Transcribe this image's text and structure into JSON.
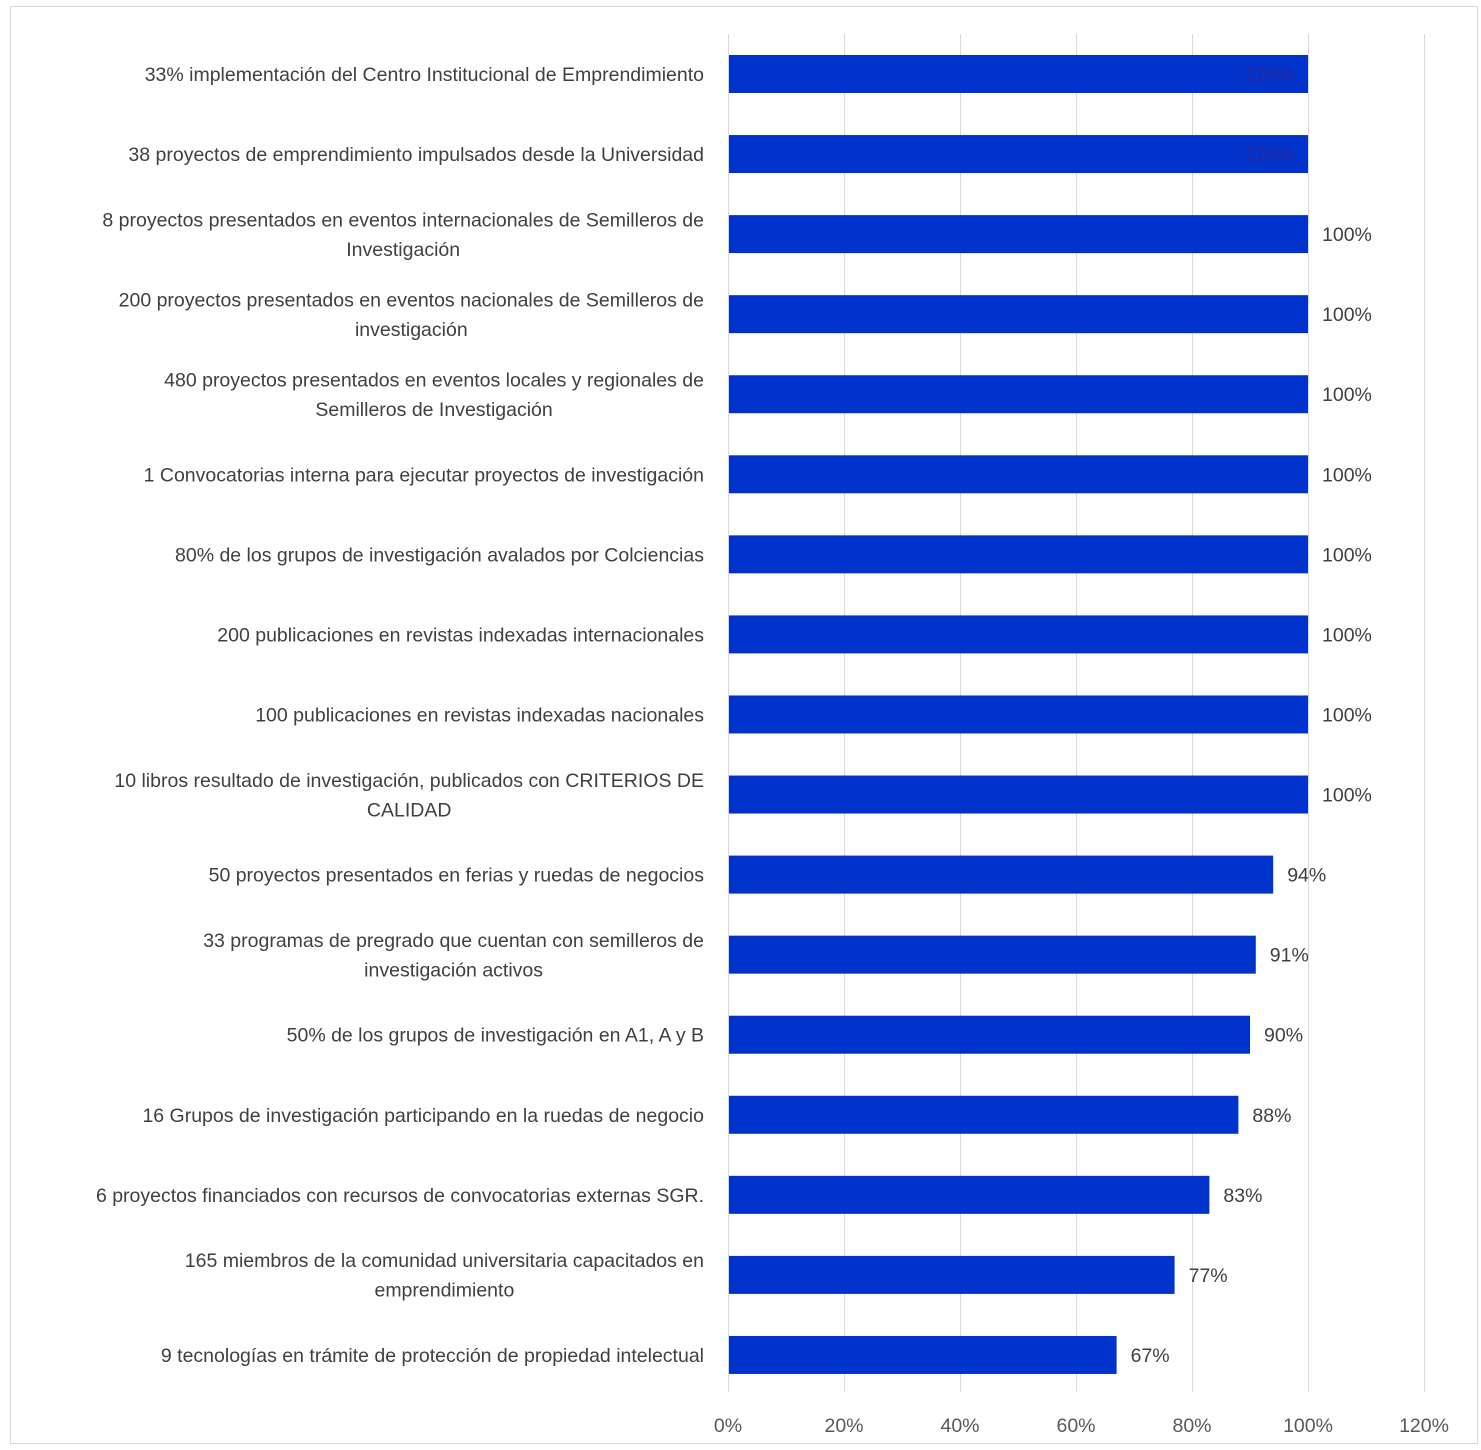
{
  "chart_data": {
    "type": "bar",
    "orientation": "horizontal",
    "categories": [
      [
        "33% implementación del Centro Institucional de Emprendimiento"
      ],
      [
        "38 proyectos de emprendimiento impulsados desde la Universidad"
      ],
      [
        "8 proyectos presentados en eventos internacionales de Semilleros de",
        "Investigación"
      ],
      [
        "200 proyectos presentados en eventos nacionales de Semilleros de",
        "investigación"
      ],
      [
        "480  proyectos presentados en eventos locales y regionales de",
        "Semilleros de Investigación"
      ],
      [
        "1  Convocatorias interna para ejecutar proyectos de investigación"
      ],
      [
        "80% de los grupos de investigación avalados por Colciencias"
      ],
      [
        "200 publicaciones en revistas indexadas internacionales"
      ],
      [
        "100 publicaciones en revistas indexadas nacionales"
      ],
      [
        "10 libros resultado de investigación, publicados con CRITERIOS DE",
        "CALIDAD"
      ],
      [
        "50 proyectos presentados en ferias y ruedas de negocios"
      ],
      [
        "33 programas de pregrado que cuentan con semilleros de",
        "investigación activos"
      ],
      [
        "50% de los grupos de investigación en A1, A y B"
      ],
      [
        "16 Grupos de investigación participando en la ruedas de negocio"
      ],
      [
        "6 proyectos financiados con recursos de convocatorias externas SGR."
      ],
      [
        "165 miembros de la comunidad universitaria capacitados en",
        "emprendimiento"
      ],
      [
        "9 tecnologías en trámite de protección de propiedad intelectual"
      ]
    ],
    "values": [
      100,
      100,
      100,
      100,
      100,
      100,
      100,
      100,
      100,
      100,
      94,
      91,
      90,
      88,
      83,
      77,
      67
    ],
    "data_labels": [
      "100%",
      "100%",
      "100%",
      "100%",
      "100%",
      "100%",
      "100%",
      "100%",
      "100%",
      "100%",
      "94%",
      "91%",
      "90%",
      "88%",
      "83%",
      "77%",
      "67%"
    ],
    "data_label_position": [
      "inside",
      "inside",
      "outside",
      "outside",
      "outside",
      "outside",
      "outside",
      "outside",
      "outside",
      "outside",
      "outside",
      "outside",
      "outside",
      "outside",
      "outside",
      "outside",
      "outside"
    ],
    "x_ticks": [
      0,
      20,
      40,
      60,
      80,
      100,
      120
    ],
    "x_tick_labels": [
      "0%",
      "20%",
      "40%",
      "60%",
      "80%",
      "100%",
      "120%"
    ],
    "xlim": [
      0,
      120
    ],
    "title": "",
    "xlabel": "",
    "ylabel": "",
    "grid": "vertical",
    "legend": "none",
    "bar_color": "#0033cc"
  }
}
